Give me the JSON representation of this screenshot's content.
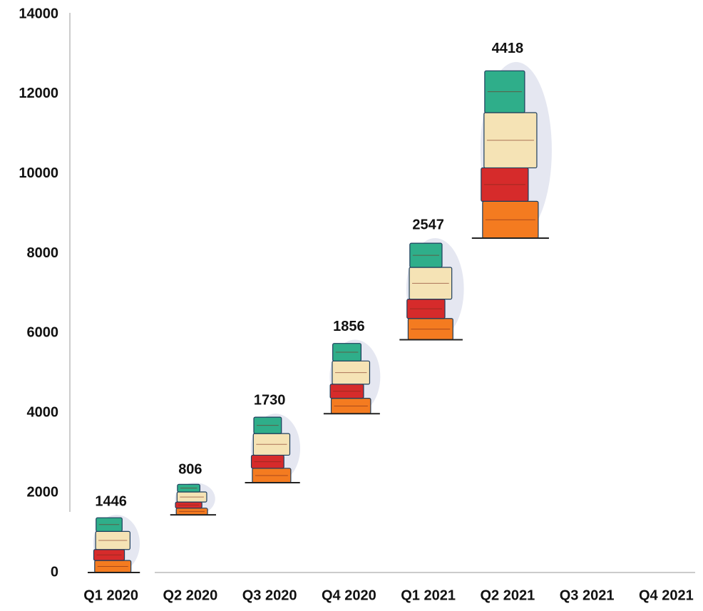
{
  "chart_data": {
    "type": "waterfall",
    "categories": [
      "Q1 2020",
      "Q2 2020",
      "Q3 2020",
      "Q4 2020",
      "Q1 2021",
      "Q2 2021",
      "Q3 2021",
      "Q4 2021"
    ],
    "values": [
      1446,
      806,
      1730,
      1856,
      2547,
      4418,
      null,
      null
    ],
    "ylim": [
      0,
      14000
    ],
    "yticks": [
      0,
      2000,
      4000,
      6000,
      8000,
      10000,
      12000,
      14000
    ],
    "colors": [
      "#f47b20",
      "#d62b2b",
      "#f5e3b5",
      "#2fae8a"
    ]
  }
}
